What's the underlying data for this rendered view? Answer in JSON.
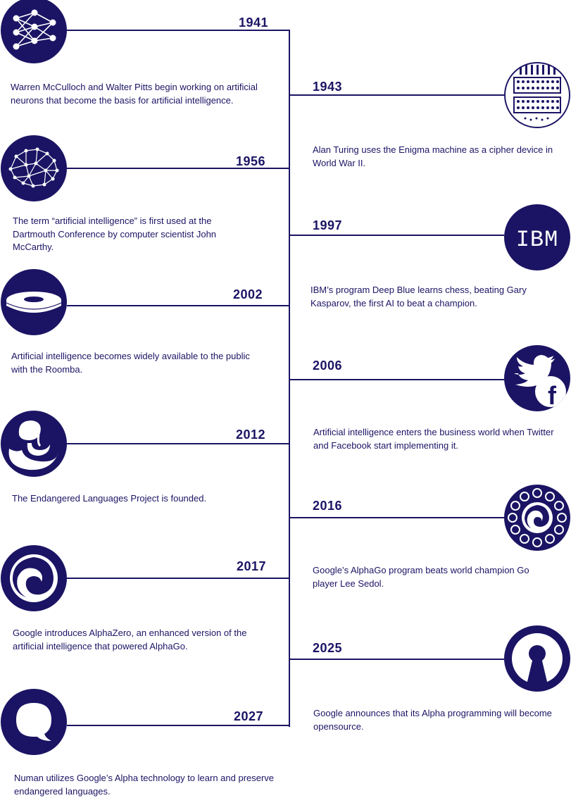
{
  "colors": {
    "primary": "#1b1464",
    "background": "#ffffff"
  },
  "events": [
    {
      "year": "1941",
      "icon": "neural-network-icon",
      "text": "Warren McCulloch and Walter Pitts begin working on artificial neurons that become the basis for artificial intelligence."
    },
    {
      "year": "1943",
      "icon": "enigma-machine-icon",
      "text": "Alan Turing uses the Enigma machine as a cipher device in World War II."
    },
    {
      "year": "1956",
      "icon": "brain-network-icon",
      "text": "The term “artificial intelligence” is first used at the Dartmouth Conference by computer scientist John McCarthy."
    },
    {
      "year": "1997",
      "icon": "ibm-logo-icon",
      "icon_text": "IBM",
      "text": "IBM’s program Deep Blue learns chess, beating Gary Kasparov, the first AI to beat a champion."
    },
    {
      "year": "2002",
      "icon": "roomba-icon",
      "text": "Artificial intelligence becomes widely available to the public with the Roomba."
    },
    {
      "year": "2006",
      "icon": "twitter-facebook-icon",
      "icon_text": "f",
      "text": "Artificial intelligence enters the business world when Twitter and Facebook start implementing it."
    },
    {
      "year": "2012",
      "icon": "endangered-languages-icon",
      "text": "The Endangered Languages Project is founded."
    },
    {
      "year": "2016",
      "icon": "alphago-board-icon",
      "text": "Google’s AlphaGo program beats world champion Go player Lee Sedol."
    },
    {
      "year": "2017",
      "icon": "alphazero-swirl-icon",
      "text": "Google introduces AlphaZero, an enhanced version of the artificial intelligence that powered AlphaGo."
    },
    {
      "year": "2025",
      "icon": "keyhole-icon",
      "text": "Google announces that its Alpha programming will become opensource."
    },
    {
      "year": "2027",
      "icon": "speech-bubble-icon",
      "text": "Numan utilizes Google’s Alpha technology to learn and preserve endangered languages."
    }
  ]
}
